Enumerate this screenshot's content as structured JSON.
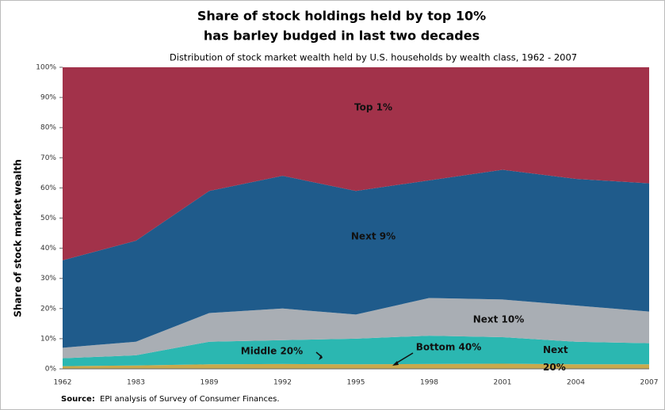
{
  "chart_data": {
    "type": "stacked_area",
    "title": [
      "Share of stock holdings held by top 10%",
      "has barley budged in last two decades"
    ],
    "subtitle": "Distribution of stock market wealth held by U.S. households by wealth class, 1962 - 2007",
    "ylabel": "Share of stock market wealth",
    "categories": [
      "1962",
      "1983",
      "1989",
      "1992",
      "1995",
      "1998",
      "2001",
      "2004",
      "2007"
    ],
    "series": [
      {
        "name": "Bottom 40%",
        "color": "#c9a94c",
        "values": [
          0.9,
          1.1,
          1.5,
          1.6,
          1.5,
          1.6,
          1.7,
          1.5,
          1.5
        ]
      },
      {
        "name": "Middle 20%",
        "color": "#2bb7b1",
        "values": [
          2.6,
          3.4,
          7.5,
          7.9,
          8.5,
          9.4,
          8.8,
          7.5,
          7.0
        ]
      },
      {
        "name": "Next 10%",
        "color": "#a9aeb4",
        "values": [
          3.5,
          4.5,
          9.5,
          10.5,
          8.0,
          12.5,
          12.5,
          12.0,
          10.5
        ]
      },
      {
        "name": "Next 9%",
        "color": "#1f5b8b",
        "values": [
          29,
          33.5,
          40.5,
          44,
          41,
          39,
          43,
          42,
          42.5
        ]
      },
      {
        "name": "Top 1%",
        "color": "#a2324a",
        "values": [
          64,
          57.5,
          41,
          36,
          41,
          37.5,
          34,
          37,
          38.5
        ]
      }
    ],
    "annotations": [
      "Next 20%"
    ],
    "ylim": [
      0,
      100
    ],
    "yticks": [
      {
        "value": 0,
        "label": "0%"
      },
      {
        "value": 10,
        "label": "10%"
      },
      {
        "value": 20,
        "label": "20%"
      },
      {
        "value": 30,
        "label": "30%"
      },
      {
        "value": 40,
        "label": "40%"
      },
      {
        "value": 50,
        "label": "50%"
      },
      {
        "value": 60,
        "label": "60%"
      },
      {
        "value": 70,
        "label": "70%"
      },
      {
        "value": 80,
        "label": "80%"
      },
      {
        "value": 90,
        "label": "90%"
      },
      {
        "value": 100,
        "label": "100%"
      }
    ],
    "source_label": "Source:",
    "source": "EPI analysis of Survey of Consumer Finances."
  }
}
